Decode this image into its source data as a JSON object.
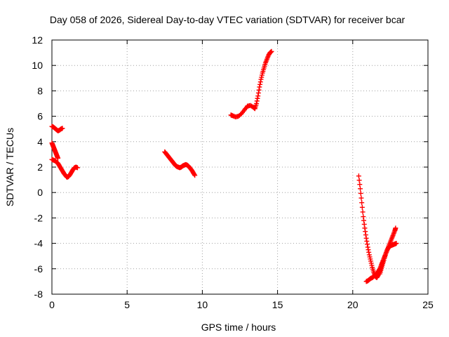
{
  "chart_data": {
    "type": "scatter",
    "title": "Day 058 of 2026, Sidereal Day-to-day VTEC variation (SDTVAR) for receiver bcar",
    "xlabel": "GPS time / hours",
    "ylabel": "SDTVAR / TECUs",
    "xlim": [
      0,
      25
    ],
    "ylim": [
      -8,
      12
    ],
    "xticks": [
      0,
      5,
      10,
      15,
      20,
      25
    ],
    "yticks": [
      -8,
      -6,
      -4,
      -2,
      0,
      2,
      4,
      6,
      8,
      10,
      12
    ],
    "grid": true,
    "marker": "+",
    "color": "#ff0000",
    "series": [
      {
        "x": [
          0.0,
          0.1,
          0.2,
          0.3,
          0.4,
          0.5,
          0.6,
          0.7
        ],
        "y": [
          5.2,
          5.15,
          5.05,
          4.95,
          4.85,
          4.9,
          5.0,
          5.05
        ]
      },
      {
        "x": [
          0.0,
          0.05,
          0.1,
          0.15,
          0.2,
          0.25,
          0.3,
          0.35,
          0.4
        ],
        "y": [
          3.9,
          3.75,
          3.6,
          3.45,
          3.3,
          3.15,
          3.0,
          2.85,
          2.7
        ]
      },
      {
        "x": [
          0.0,
          0.1,
          0.2,
          0.3,
          0.4,
          0.5,
          0.6,
          0.7,
          0.8,
          0.9,
          1.0,
          1.1,
          1.2,
          1.3,
          1.4,
          1.5,
          1.6,
          1.7
        ],
        "y": [
          2.6,
          2.55,
          2.5,
          2.4,
          2.3,
          2.1,
          1.9,
          1.7,
          1.5,
          1.35,
          1.2,
          1.25,
          1.4,
          1.6,
          1.8,
          1.95,
          2.0,
          1.95
        ]
      },
      {
        "x": [
          7.5,
          7.6,
          7.7,
          7.8,
          7.9,
          8.0,
          8.1,
          8.2,
          8.3,
          8.4,
          8.5,
          8.6,
          8.7,
          8.8,
          8.9,
          9.0,
          9.1,
          9.2,
          9.3,
          9.4,
          9.5
        ],
        "y": [
          3.2,
          3.05,
          2.9,
          2.75,
          2.6,
          2.45,
          2.3,
          2.15,
          2.05,
          2.0,
          1.95,
          2.0,
          2.1,
          2.15,
          2.2,
          2.15,
          2.05,
          1.9,
          1.75,
          1.55,
          1.35
        ]
      },
      {
        "x": [
          11.9,
          12.0,
          12.2,
          12.4,
          12.6,
          12.8,
          13.0,
          13.2,
          13.4,
          13.5,
          13.6,
          13.7,
          13.8,
          13.9,
          14.0,
          14.1,
          14.2,
          14.3,
          14.4,
          14.5,
          14.6
        ],
        "y": [
          6.1,
          6.05,
          5.95,
          6.0,
          6.2,
          6.5,
          6.8,
          6.85,
          6.7,
          6.6,
          7.0,
          7.6,
          8.3,
          8.9,
          9.4,
          9.8,
          10.2,
          10.5,
          10.8,
          11.0,
          11.1
        ]
      },
      {
        "x": [
          20.4,
          20.5,
          20.6,
          20.7,
          20.8,
          20.9,
          21.0,
          21.1,
          21.2,
          21.3,
          21.4,
          21.5,
          21.6,
          21.7,
          21.8,
          21.9,
          22.0
        ],
        "y": [
          1.3,
          0.3,
          -0.8,
          -1.9,
          -2.8,
          -3.6,
          -4.3,
          -4.9,
          -5.4,
          -5.9,
          -6.3,
          -6.6,
          -6.7,
          -6.5,
          -6.2,
          -5.8,
          -5.4
        ]
      },
      {
        "x": [
          20.9,
          21.0,
          21.1,
          21.2,
          21.3,
          21.4,
          21.5,
          21.6,
          21.7,
          21.8,
          21.9,
          22.0,
          22.1,
          22.2,
          22.3,
          22.4,
          22.5,
          22.6,
          22.7,
          22.8,
          22.9
        ],
        "y": [
          -7.0,
          -6.95,
          -6.85,
          -6.75,
          -6.7,
          -6.6,
          -6.5,
          -6.4,
          -6.2,
          -6.0,
          -5.7,
          -5.4,
          -5.1,
          -4.8,
          -4.5,
          -4.3,
          -4.2,
          -4.15,
          -4.1,
          -4.05,
          -4.0
        ]
      },
      {
        "x": [
          21.8,
          21.9,
          22.0,
          22.1,
          22.2,
          22.3,
          22.4,
          22.5,
          22.6,
          22.7,
          22.8,
          22.85
        ],
        "y": [
          -6.4,
          -6.0,
          -5.6,
          -5.2,
          -4.8,
          -4.5,
          -4.2,
          -3.9,
          -3.6,
          -3.3,
          -3.0,
          -2.8
        ]
      }
    ]
  }
}
